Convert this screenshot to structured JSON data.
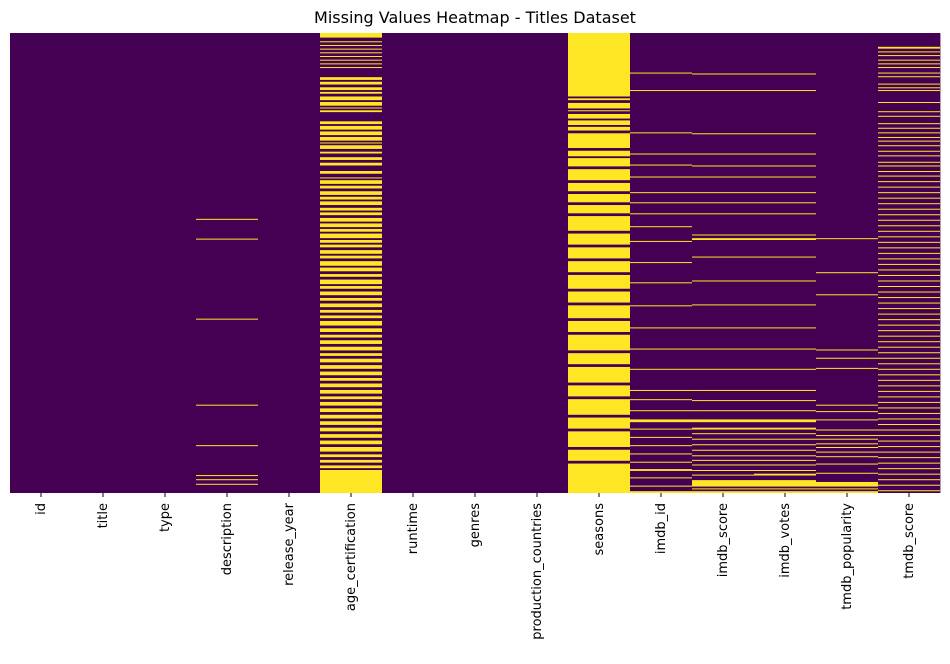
{
  "chart_data": {
    "type": "heatmap",
    "title": "Missing Values Heatmap - Titles Dataset",
    "xlabel": "",
    "ylabel": "",
    "colormap": "viridis",
    "colorbar": false,
    "colors": {
      "present": "#440154",
      "missing": "#fde725"
    },
    "columns": [
      "id",
      "title",
      "type",
      "description",
      "release_year",
      "age_certification",
      "runtime",
      "genres",
      "production_countries",
      "seasons",
      "imdb_id",
      "imdb_score",
      "imdb_votes",
      "tmdb_popularity",
      "tmdb_score"
    ],
    "missing_rows": {
      "description": [
        [
          0.404,
          0.406
        ],
        [
          0.447,
          0.449
        ],
        [
          0.621,
          0.623
        ],
        [
          0.808,
          0.81
        ],
        [
          0.896,
          0.898
        ],
        [
          0.961,
          0.963
        ],
        [
          0.97,
          0.972
        ],
        [
          0.98,
          0.982
        ]
      ],
      "age_certification": [
        [
          0.0,
          0.01
        ],
        [
          0.018,
          0.02
        ],
        [
          0.026,
          0.028
        ],
        [
          0.034,
          0.036
        ],
        [
          0.042,
          0.044
        ],
        [
          0.05,
          0.052
        ],
        [
          0.058,
          0.06
        ],
        [
          0.066,
          0.068
        ],
        [
          0.074,
          0.076
        ],
        [
          0.096,
          0.102
        ],
        [
          0.106,
          0.112
        ],
        [
          0.118,
          0.124
        ],
        [
          0.128,
          0.132
        ],
        [
          0.138,
          0.146
        ],
        [
          0.15,
          0.158
        ],
        [
          0.162,
          0.164
        ],
        [
          0.168,
          0.172
        ],
        [
          0.192,
          0.198
        ],
        [
          0.202,
          0.21
        ],
        [
          0.214,
          0.222
        ],
        [
          0.226,
          0.234
        ],
        [
          0.238,
          0.24
        ],
        [
          0.244,
          0.252
        ],
        [
          0.258,
          0.262
        ],
        [
          0.27,
          0.276
        ],
        [
          0.282,
          0.288
        ],
        [
          0.3,
          0.306
        ],
        [
          0.314,
          0.316
        ],
        [
          0.32,
          0.328
        ],
        [
          0.332,
          0.338
        ],
        [
          0.344,
          0.352
        ],
        [
          0.356,
          0.362
        ],
        [
          0.366,
          0.374
        ],
        [
          0.38,
          0.386
        ],
        [
          0.39,
          0.396
        ],
        [
          0.402,
          0.41
        ],
        [
          0.414,
          0.422
        ],
        [
          0.426,
          0.432
        ],
        [
          0.436,
          0.446
        ],
        [
          0.45,
          0.456
        ],
        [
          0.46,
          0.466
        ],
        [
          0.472,
          0.48
        ],
        [
          0.484,
          0.49
        ],
        [
          0.496,
          0.506
        ],
        [
          0.51,
          0.518
        ],
        [
          0.524,
          0.53
        ],
        [
          0.536,
          0.546
        ],
        [
          0.55,
          0.556
        ],
        [
          0.562,
          0.57
        ],
        [
          0.576,
          0.582
        ],
        [
          0.588,
          0.596
        ],
        [
          0.602,
          0.608
        ],
        [
          0.614,
          0.62
        ],
        [
          0.626,
          0.636
        ],
        [
          0.642,
          0.65
        ],
        [
          0.656,
          0.662
        ],
        [
          0.668,
          0.676
        ],
        [
          0.682,
          0.69
        ],
        [
          0.696,
          0.702
        ],
        [
          0.708,
          0.716
        ],
        [
          0.722,
          0.73
        ],
        [
          0.736,
          0.744
        ],
        [
          0.75,
          0.756
        ],
        [
          0.762,
          0.77
        ],
        [
          0.776,
          0.784
        ],
        [
          0.79,
          0.796
        ],
        [
          0.802,
          0.81
        ],
        [
          0.816,
          0.824
        ],
        [
          0.83,
          0.838
        ],
        [
          0.844,
          0.852
        ],
        [
          0.858,
          0.866
        ],
        [
          0.872,
          0.88
        ],
        [
          0.886,
          0.894
        ],
        [
          0.9,
          0.91
        ],
        [
          0.916,
          0.922
        ],
        [
          0.928,
          0.934
        ],
        [
          0.94,
          0.946
        ],
        [
          0.95,
          1.0
        ]
      ],
      "seasons": [
        [
          0.0,
          0.138
        ],
        [
          0.142,
          0.146
        ],
        [
          0.152,
          0.164
        ],
        [
          0.168,
          0.17
        ],
        [
          0.176,
          0.186
        ],
        [
          0.19,
          0.2
        ],
        [
          0.204,
          0.212
        ],
        [
          0.218,
          0.25
        ],
        [
          0.256,
          0.268
        ],
        [
          0.272,
          0.29
        ],
        [
          0.296,
          0.32
        ],
        [
          0.326,
          0.344
        ],
        [
          0.35,
          0.368
        ],
        [
          0.374,
          0.392
        ],
        [
          0.398,
          0.43
        ],
        [
          0.436,
          0.46
        ],
        [
          0.466,
          0.49
        ],
        [
          0.496,
          0.52
        ],
        [
          0.526,
          0.556
        ],
        [
          0.562,
          0.586
        ],
        [
          0.592,
          0.62
        ],
        [
          0.626,
          0.65
        ],
        [
          0.656,
          0.69
        ],
        [
          0.696,
          0.72
        ],
        [
          0.726,
          0.76
        ],
        [
          0.766,
          0.79
        ],
        [
          0.796,
          0.83
        ],
        [
          0.836,
          0.86
        ],
        [
          0.866,
          0.9
        ],
        [
          0.906,
          0.93
        ],
        [
          0.936,
          1.0
        ]
      ],
      "imdb_id": [
        [
          0.086,
          0.088
        ],
        [
          0.124,
          0.126
        ],
        [
          0.216,
          0.218
        ],
        [
          0.262,
          0.264
        ],
        [
          0.286,
          0.288
        ],
        [
          0.312,
          0.314
        ],
        [
          0.346,
          0.348
        ],
        [
          0.368,
          0.37
        ],
        [
          0.392,
          0.394
        ],
        [
          0.42,
          0.422
        ],
        [
          0.452,
          0.454
        ],
        [
          0.498,
          0.5
        ],
        [
          0.542,
          0.544
        ],
        [
          0.592,
          0.594
        ],
        [
          0.64,
          0.642
        ],
        [
          0.686,
          0.688
        ],
        [
          0.73,
          0.732
        ],
        [
          0.776,
          0.778
        ],
        [
          0.796,
          0.798
        ],
        [
          0.82,
          0.822
        ],
        [
          0.84,
          0.846
        ],
        [
          0.86,
          0.862
        ],
        [
          0.878,
          0.88
        ],
        [
          0.896,
          0.898
        ],
        [
          0.914,
          0.916
        ],
        [
          0.932,
          0.934
        ],
        [
          0.948,
          0.952
        ],
        [
          0.966,
          0.968
        ],
        [
          0.984,
          0.986
        ],
        [
          0.996,
          1.0
        ]
      ],
      "imdb_score": [
        [
          0.088,
          0.09
        ],
        [
          0.124,
          0.126
        ],
        [
          0.218,
          0.22
        ],
        [
          0.262,
          0.264
        ],
        [
          0.288,
          0.29
        ],
        [
          0.312,
          0.314
        ],
        [
          0.346,
          0.348
        ],
        [
          0.368,
          0.37
        ],
        [
          0.392,
          0.394
        ],
        [
          0.438,
          0.44
        ],
        [
          0.446,
          0.45
        ],
        [
          0.486,
          0.488
        ],
        [
          0.538,
          0.54
        ],
        [
          0.59,
          0.592
        ],
        [
          0.64,
          0.642
        ],
        [
          0.686,
          0.688
        ],
        [
          0.73,
          0.732
        ],
        [
          0.776,
          0.778
        ],
        [
          0.798,
          0.8
        ],
        [
          0.82,
          0.822
        ],
        [
          0.84,
          0.846
        ],
        [
          0.858,
          0.862
        ],
        [
          0.87,
          0.872
        ],
        [
          0.882,
          0.884
        ],
        [
          0.894,
          0.896
        ],
        [
          0.906,
          0.908
        ],
        [
          0.918,
          0.92
        ],
        [
          0.928,
          0.93
        ],
        [
          0.938,
          0.94
        ],
        [
          0.95,
          0.952
        ],
        [
          0.96,
          0.962
        ],
        [
          0.972,
          0.986
        ],
        [
          0.99,
          0.992
        ],
        [
          0.996,
          1.0
        ]
      ],
      "imdb_votes": [
        [
          0.088,
          0.09
        ],
        [
          0.124,
          0.126
        ],
        [
          0.218,
          0.22
        ],
        [
          0.262,
          0.264
        ],
        [
          0.288,
          0.29
        ],
        [
          0.312,
          0.314
        ],
        [
          0.346,
          0.348
        ],
        [
          0.368,
          0.37
        ],
        [
          0.392,
          0.394
        ],
        [
          0.438,
          0.44
        ],
        [
          0.446,
          0.45
        ],
        [
          0.486,
          0.488
        ],
        [
          0.538,
          0.54
        ],
        [
          0.59,
          0.592
        ],
        [
          0.64,
          0.642
        ],
        [
          0.686,
          0.688
        ],
        [
          0.73,
          0.732
        ],
        [
          0.776,
          0.778
        ],
        [
          0.798,
          0.8
        ],
        [
          0.82,
          0.822
        ],
        [
          0.84,
          0.846
        ],
        [
          0.858,
          0.862
        ],
        [
          0.87,
          0.872
        ],
        [
          0.882,
          0.884
        ],
        [
          0.894,
          0.896
        ],
        [
          0.906,
          0.908
        ],
        [
          0.918,
          0.92
        ],
        [
          0.928,
          0.93
        ],
        [
          0.938,
          0.94
        ],
        [
          0.95,
          0.952
        ],
        [
          0.958,
          0.962
        ],
        [
          0.972,
          0.986
        ],
        [
          0.99,
          0.992
        ],
        [
          0.996,
          1.0
        ]
      ],
      "tmdb_popularity": [
        [
          0.446,
          0.448
        ],
        [
          0.52,
          0.522
        ],
        [
          0.568,
          0.57
        ],
        [
          0.688,
          0.69
        ],
        [
          0.706,
          0.708
        ],
        [
          0.728,
          0.73
        ],
        [
          0.808,
          0.81
        ],
        [
          0.822,
          0.824
        ],
        [
          0.84,
          0.842
        ],
        [
          0.862,
          0.864
        ],
        [
          0.874,
          0.876
        ],
        [
          0.882,
          0.884
        ],
        [
          0.892,
          0.894
        ],
        [
          0.9,
          0.902
        ],
        [
          0.91,
          0.912
        ],
        [
          0.92,
          0.922
        ],
        [
          0.936,
          0.938
        ],
        [
          0.956,
          0.958
        ],
        [
          0.976,
          0.986
        ],
        [
          0.99,
          0.992
        ],
        [
          0.996,
          1.0
        ]
      ],
      "tmdb_score": [
        [
          0.03,
          0.034
        ],
        [
          0.04,
          0.042
        ],
        [
          0.048,
          0.05
        ],
        [
          0.058,
          0.06
        ],
        [
          0.066,
          0.068
        ],
        [
          0.074,
          0.076
        ],
        [
          0.086,
          0.088
        ],
        [
          0.094,
          0.096
        ],
        [
          0.11,
          0.112
        ],
        [
          0.118,
          0.12
        ],
        [
          0.124,
          0.126
        ],
        [
          0.15,
          0.152
        ],
        [
          0.17,
          0.172
        ],
        [
          0.18,
          0.182
        ],
        [
          0.196,
          0.198
        ],
        [
          0.206,
          0.208
        ],
        [
          0.216,
          0.218
        ],
        [
          0.226,
          0.228
        ],
        [
          0.234,
          0.236
        ],
        [
          0.244,
          0.246
        ],
        [
          0.256,
          0.258
        ],
        [
          0.266,
          0.268
        ],
        [
          0.28,
          0.282
        ],
        [
          0.288,
          0.29
        ],
        [
          0.3,
          0.302
        ],
        [
          0.31,
          0.312
        ],
        [
          0.322,
          0.324
        ],
        [
          0.334,
          0.336
        ],
        [
          0.346,
          0.348
        ],
        [
          0.358,
          0.36
        ],
        [
          0.37,
          0.372
        ],
        [
          0.382,
          0.384
        ],
        [
          0.394,
          0.396
        ],
        [
          0.406,
          0.408
        ],
        [
          0.418,
          0.42
        ],
        [
          0.43,
          0.432
        ],
        [
          0.442,
          0.444
        ],
        [
          0.454,
          0.456
        ],
        [
          0.466,
          0.468
        ],
        [
          0.478,
          0.48
        ],
        [
          0.49,
          0.492
        ],
        [
          0.502,
          0.504
        ],
        [
          0.514,
          0.516
        ],
        [
          0.526,
          0.528
        ],
        [
          0.538,
          0.54
        ],
        [
          0.55,
          0.552
        ],
        [
          0.562,
          0.564
        ],
        [
          0.574,
          0.576
        ],
        [
          0.586,
          0.588
        ],
        [
          0.598,
          0.6
        ],
        [
          0.61,
          0.612
        ],
        [
          0.622,
          0.624
        ],
        [
          0.634,
          0.636
        ],
        [
          0.646,
          0.648
        ],
        [
          0.658,
          0.66
        ],
        [
          0.67,
          0.672
        ],
        [
          0.682,
          0.684
        ],
        [
          0.694,
          0.696
        ],
        [
          0.706,
          0.708
        ],
        [
          0.718,
          0.72
        ],
        [
          0.73,
          0.732
        ],
        [
          0.742,
          0.744
        ],
        [
          0.754,
          0.756
        ],
        [
          0.766,
          0.768
        ],
        [
          0.778,
          0.78
        ],
        [
          0.79,
          0.792
        ],
        [
          0.802,
          0.804
        ],
        [
          0.814,
          0.816
        ],
        [
          0.826,
          0.828
        ],
        [
          0.838,
          0.84
        ],
        [
          0.85,
          0.852
        ],
        [
          0.862,
          0.864
        ],
        [
          0.874,
          0.876
        ],
        [
          0.886,
          0.888
        ],
        [
          0.898,
          0.9
        ],
        [
          0.91,
          0.912
        ],
        [
          0.922,
          0.924
        ],
        [
          0.934,
          0.936
        ],
        [
          0.946,
          0.948
        ],
        [
          0.958,
          0.96
        ],
        [
          0.97,
          0.972
        ],
        [
          0.982,
          0.984
        ],
        [
          0.994,
          0.996
        ]
      ]
    }
  }
}
